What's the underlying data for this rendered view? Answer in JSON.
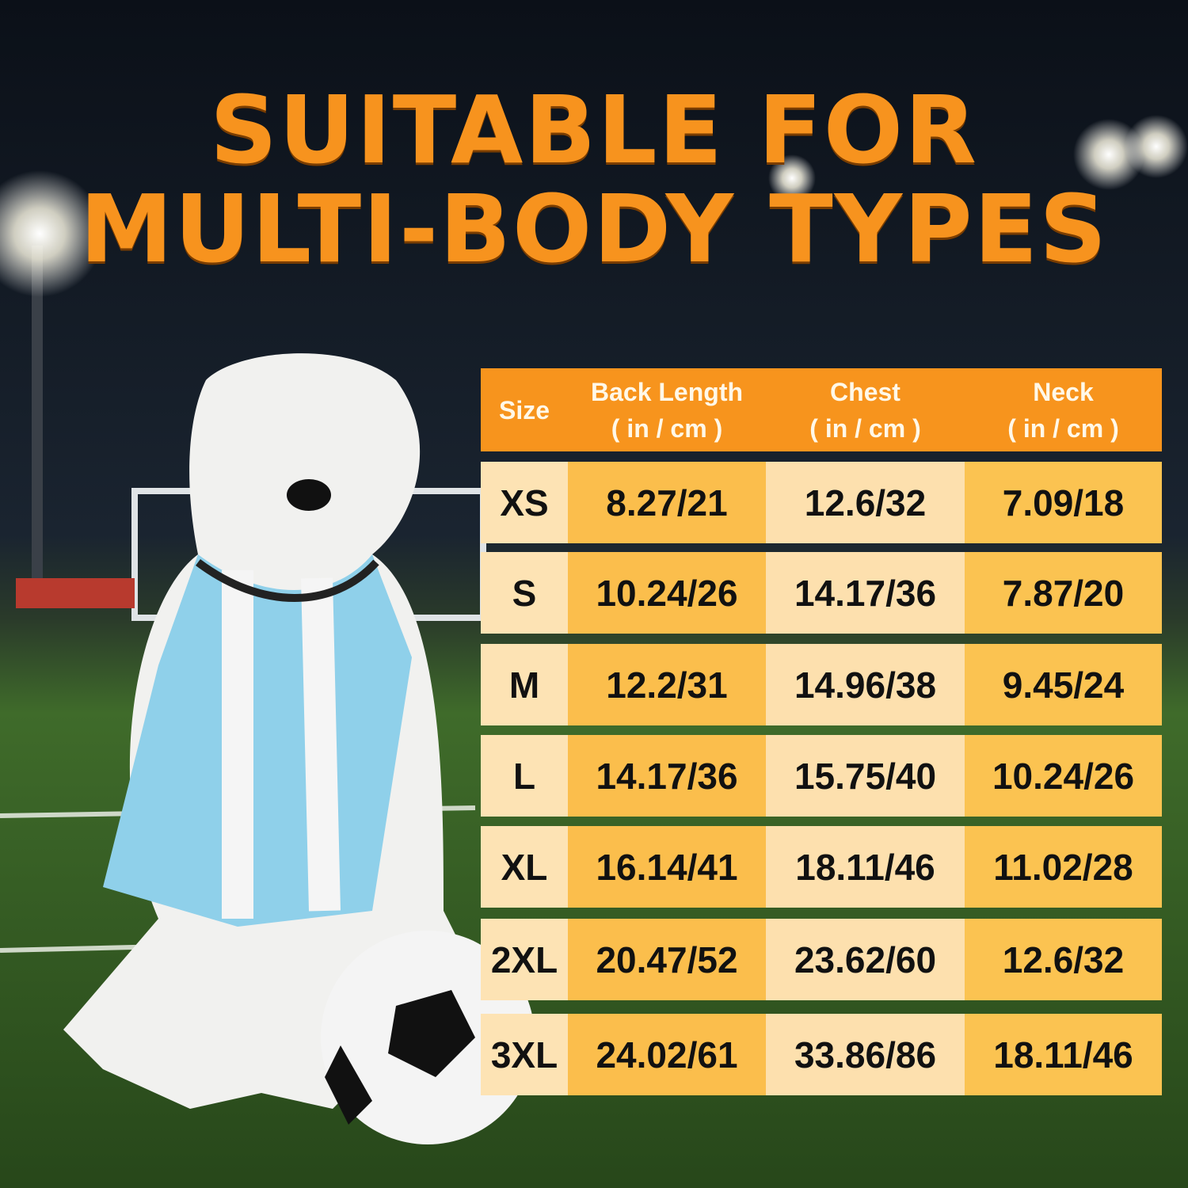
{
  "header": {
    "title": [
      "SUITABLE FOR",
      "MULTI-BODY TYPES"
    ]
  },
  "table": {
    "columns": [
      {
        "name": "Size"
      },
      {
        "name": "Back Length",
        "unit": "( in / cm )"
      },
      {
        "name": "Chest",
        "unit": "( in / cm )"
      },
      {
        "name": "Neck",
        "unit": "( in / cm )"
      }
    ],
    "rows": [
      [
        "XS",
        "8.27/21",
        "12.6/32",
        "7.09/18"
      ],
      [
        "S",
        "10.24/26",
        "14.17/36",
        "7.87/20"
      ],
      [
        "M",
        "12.2/31",
        "14.96/38",
        "9.45/24"
      ],
      [
        "L",
        "14.17/36",
        "15.75/40",
        "10.24/26"
      ],
      [
        "XL",
        "16.14/41",
        "18.11/46",
        "11.02/28"
      ],
      [
        "2XL",
        "20.47/52",
        "23.62/60",
        "12.6/32"
      ],
      [
        "3XL",
        "24.02/61",
        "33.86/86",
        "18.11/46"
      ]
    ]
  }
}
